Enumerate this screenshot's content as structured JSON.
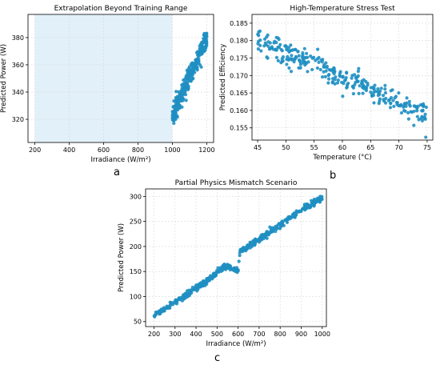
{
  "panel_labels": [
    "a",
    "b",
    "c"
  ],
  "colors": {
    "points": "#1f8fc2",
    "training_band": "#e1f0f9",
    "grid": "#d9d9d9",
    "axis": "#000000"
  },
  "chart_data": [
    {
      "type": "scatter",
      "title": "Extrapolation Beyond Training Range",
      "xlabel": "Irradiance (W/m²)",
      "ylabel": "Predicted Power (W)",
      "xlim": [
        160,
        1240
      ],
      "ylim": [
        303,
        397
      ],
      "xticks": [
        200,
        400,
        600,
        800,
        1000,
        1200
      ],
      "yticks": [
        320,
        340,
        360,
        380
      ],
      "grid": true,
      "shaded_region": {
        "x": [
          200,
          1000
        ]
      },
      "series": [
        {
          "x": [
            1000,
            1020,
            1040,
            1060,
            1080,
            1100,
            1120,
            1140,
            1160,
            1180,
            1200
          ],
          "y": [
            322,
            328,
            334,
            340,
            346,
            352,
            357,
            362,
            368,
            375,
            380
          ],
          "spread": 6,
          "count": 300
        }
      ]
    },
    {
      "type": "scatter",
      "title": "High-Temperature Stress Test",
      "xlabel": "Temperature (°C)",
      "ylabel": "Predicted Efficiency",
      "xlim": [
        44,
        76
      ],
      "ylim": [
        0.1515,
        0.1875
      ],
      "xticks": [
        45,
        50,
        55,
        60,
        65,
        70,
        75
      ],
      "yticks": [
        0.155,
        0.16,
        0.165,
        0.17,
        0.175,
        0.18,
        0.185
      ],
      "grid": true,
      "series": [
        {
          "x": [
            45,
            50,
            55,
            60,
            65,
            70,
            75
          ],
          "y": [
            0.18,
            0.1765,
            0.1735,
            0.17,
            0.166,
            0.1625,
            0.1585
          ],
          "spread": 0.003,
          "count": 300
        }
      ]
    },
    {
      "type": "scatter",
      "title": "Partial Physics Mismatch Scenario",
      "xlabel": "Irradiance (W/m²)",
      "ylabel": "Predicted Power (W)",
      "xlim": [
        160,
        1020
      ],
      "ylim": [
        40,
        315
      ],
      "xticks": [
        200,
        300,
        400,
        500,
        600,
        700,
        800,
        900,
        1000
      ],
      "yticks": [
        50,
        100,
        150,
        200,
        250,
        300
      ],
      "grid": true,
      "series": [
        {
          "x": [
            200,
            250,
            300,
            350,
            400,
            450,
            500,
            530,
            560,
            600,
            610,
            650,
            700,
            750,
            800,
            850,
            900,
            950,
            1000
          ],
          "y": [
            62,
            75,
            90,
            102,
            117,
            130,
            148,
            160,
            158,
            150,
            192,
            200,
            214,
            228,
            243,
            258,
            272,
            285,
            298
          ],
          "spread": 5,
          "count": 480
        }
      ]
    }
  ]
}
